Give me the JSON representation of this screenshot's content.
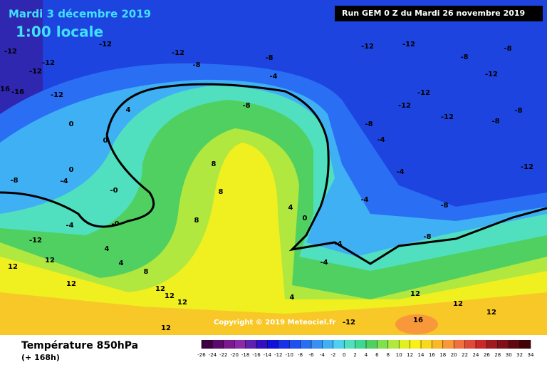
{
  "header": {
    "date": "Mardi 3 décembre 2019",
    "time": "1:00 locale",
    "run": "Run GEM 0 Z du Mardi 26 novembre 2019"
  },
  "copyright": "Copyright © 2019 Meteociel.fr",
  "footer": {
    "title": "Température 850hPa",
    "subtitle": "(+ 168h)"
  },
  "contour_labels": [
    "-12",
    "-12",
    "-12",
    "-12",
    "-12",
    "-12",
    "-8",
    "-8",
    "-4",
    "-12",
    "-12",
    "-8",
    "-8",
    "-12",
    "-12",
    "-12",
    "-12",
    "-8",
    "-8",
    "-12",
    "-8",
    "-4",
    "-4",
    "-8",
    "-8",
    "-4",
    "-4",
    "-4",
    "4",
    "-8",
    "0",
    "0",
    "0",
    "-0",
    "-0",
    "-4",
    "-4",
    "-8",
    "8",
    "8",
    "8",
    "4",
    "0",
    "4",
    "8",
    "4",
    "-12",
    "12",
    "12",
    "12",
    "12",
    "12",
    "12",
    "12",
    "-12",
    "12",
    "12",
    "16",
    "12",
    "-16",
    "16",
    "4"
  ],
  "scale": {
    "ticks": [
      -26,
      -24,
      -22,
      -20,
      -18,
      -16,
      -14,
      -12,
      -10,
      -8,
      -6,
      -4,
      -2,
      0,
      2,
      4,
      6,
      8,
      10,
      12,
      14,
      16,
      18,
      20,
      22,
      24,
      26,
      28,
      30,
      32,
      34
    ],
    "colors": [
      "#3a0040",
      "#5a0a6a",
      "#7a1a8e",
      "#8a2aa8",
      "#6020b0",
      "#3010c0",
      "#1010d8",
      "#1a30e8",
      "#2050f0",
      "#2a6ef4",
      "#3890f4",
      "#40b0f4",
      "#50d0f0",
      "#50e0c0",
      "#40d890",
      "#50d060",
      "#80e050",
      "#b0e840",
      "#e0f020",
      "#f8f018",
      "#f8d820",
      "#f8b828",
      "#f8983a",
      "#f07040",
      "#e04838",
      "#c82828",
      "#a01820",
      "#801018",
      "#600810",
      "#400408"
    ]
  }
}
